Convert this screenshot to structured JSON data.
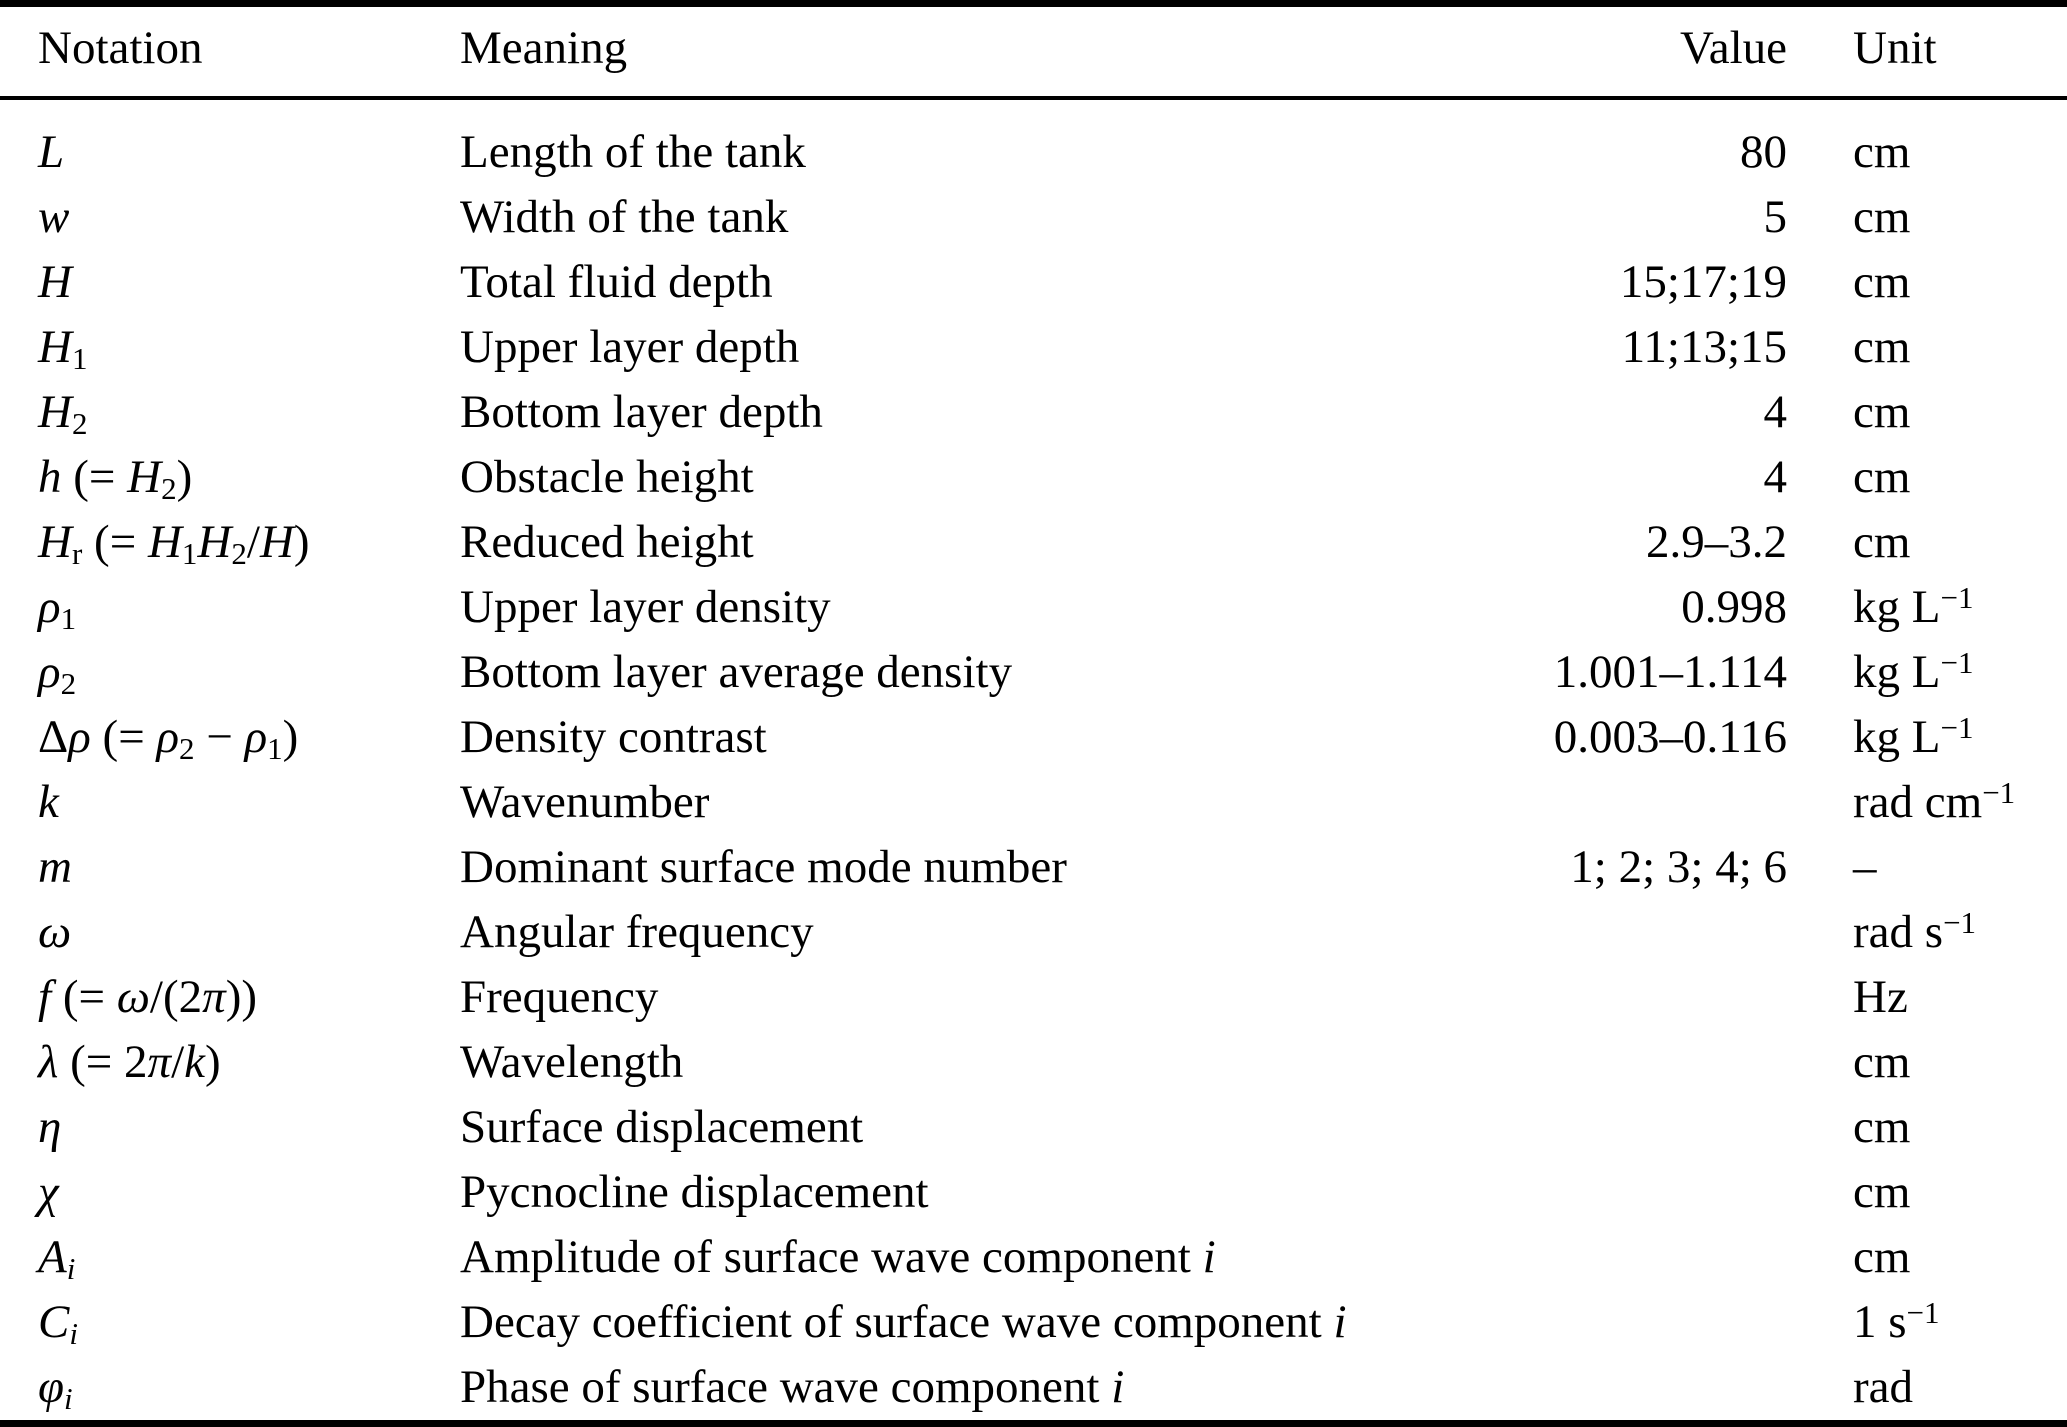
{
  "colors": {
    "background": "#ffffff",
    "text": "#000000",
    "rule": "#000000"
  },
  "table": {
    "columns": [
      {
        "label": "Notation"
      },
      {
        "label": "Meaning"
      },
      {
        "label": "Value"
      },
      {
        "label": "Unit"
      }
    ],
    "rows": [
      {
        "notation": [
          {
            "t": "L",
            "i": true
          }
        ],
        "meaning": [
          {
            "t": "Length of the tank"
          }
        ],
        "value": "80",
        "unit": [
          {
            "t": "cm"
          }
        ]
      },
      {
        "notation": [
          {
            "t": "w",
            "i": true
          }
        ],
        "meaning": [
          {
            "t": "Width of the tank"
          }
        ],
        "value": "5",
        "unit": [
          {
            "t": "cm"
          }
        ]
      },
      {
        "notation": [
          {
            "t": "H",
            "i": true
          }
        ],
        "meaning": [
          {
            "t": "Total fluid depth"
          }
        ],
        "value": "15;17;19",
        "unit": [
          {
            "t": "cm"
          }
        ]
      },
      {
        "notation": [
          {
            "t": "H",
            "i": true
          },
          {
            "t": "1",
            "sub": true
          }
        ],
        "meaning": [
          {
            "t": "Upper layer depth"
          }
        ],
        "value": "11;13;15",
        "unit": [
          {
            "t": "cm"
          }
        ]
      },
      {
        "notation": [
          {
            "t": "H",
            "i": true
          },
          {
            "t": "2",
            "sub": true
          }
        ],
        "meaning": [
          {
            "t": "Bottom layer depth"
          }
        ],
        "value": "4",
        "unit": [
          {
            "t": "cm"
          }
        ]
      },
      {
        "notation": [
          {
            "t": "h",
            "i": true
          },
          {
            "t": " (= "
          },
          {
            "t": "H",
            "i": true
          },
          {
            "t": "2",
            "sub": true
          },
          {
            "t": ")"
          }
        ],
        "meaning": [
          {
            "t": "Obstacle height"
          }
        ],
        "value": "4",
        "unit": [
          {
            "t": "cm"
          }
        ]
      },
      {
        "notation": [
          {
            "t": "H",
            "i": true
          },
          {
            "t": "r",
            "sub": true
          },
          {
            "t": " (= "
          },
          {
            "t": "H",
            "i": true
          },
          {
            "t": "1",
            "sub": true
          },
          {
            "t": "H",
            "i": true
          },
          {
            "t": "2",
            "sub": true
          },
          {
            "t": "/"
          },
          {
            "t": "H",
            "i": true
          },
          {
            "t": ")"
          }
        ],
        "meaning": [
          {
            "t": "Reduced height"
          }
        ],
        "value": "2.9–3.2",
        "unit": [
          {
            "t": "cm"
          }
        ]
      },
      {
        "notation": [
          {
            "t": "ρ",
            "i": true
          },
          {
            "t": "1",
            "sub": true
          }
        ],
        "meaning": [
          {
            "t": "Upper layer density"
          }
        ],
        "value": "0.998",
        "unit": [
          {
            "t": "kg L"
          },
          {
            "t": "−1",
            "sup": true
          }
        ]
      },
      {
        "notation": [
          {
            "t": "ρ",
            "i": true
          },
          {
            "t": "2",
            "sub": true
          }
        ],
        "meaning": [
          {
            "t": "Bottom layer average density"
          }
        ],
        "value": "1.001–1.114",
        "unit": [
          {
            "t": "kg L"
          },
          {
            "t": "−1",
            "sup": true
          }
        ]
      },
      {
        "notation": [
          {
            "t": "Δ"
          },
          {
            "t": "ρ",
            "i": true
          },
          {
            "t": " (= "
          },
          {
            "t": "ρ",
            "i": true
          },
          {
            "t": "2",
            "sub": true
          },
          {
            "t": " − "
          },
          {
            "t": "ρ",
            "i": true
          },
          {
            "t": "1",
            "sub": true
          },
          {
            "t": ")"
          }
        ],
        "meaning": [
          {
            "t": "Density contrast"
          }
        ],
        "value": "0.003–0.116",
        "unit": [
          {
            "t": "kg L"
          },
          {
            "t": "−1",
            "sup": true
          }
        ]
      },
      {
        "notation": [
          {
            "t": "k",
            "i": true
          }
        ],
        "meaning": [
          {
            "t": "Wavenumber"
          }
        ],
        "value": "",
        "unit": [
          {
            "t": "rad cm"
          },
          {
            "t": "−1",
            "sup": true
          }
        ]
      },
      {
        "notation": [
          {
            "t": "m",
            "i": true
          }
        ],
        "meaning": [
          {
            "t": "Dominant surface mode number"
          }
        ],
        "value": "1; 2; 3; 4; 6",
        "unit": [
          {
            "t": "–"
          }
        ]
      },
      {
        "notation": [
          {
            "t": "ω",
            "i": true
          }
        ],
        "meaning": [
          {
            "t": "Angular frequency"
          }
        ],
        "value": "",
        "unit": [
          {
            "t": "rad s"
          },
          {
            "t": "−1",
            "sup": true
          }
        ]
      },
      {
        "notation": [
          {
            "t": "f",
            "i": true
          },
          {
            "t": " (= "
          },
          {
            "t": "ω",
            "i": true
          },
          {
            "t": "/(2"
          },
          {
            "t": "π",
            "i": true
          },
          {
            "t": "))"
          }
        ],
        "meaning": [
          {
            "t": "Frequency"
          }
        ],
        "value": "",
        "unit": [
          {
            "t": "Hz"
          }
        ]
      },
      {
        "notation": [
          {
            "t": "λ",
            "i": true
          },
          {
            "t": " (= 2"
          },
          {
            "t": "π",
            "i": true
          },
          {
            "t": "/"
          },
          {
            "t": "k",
            "i": true
          },
          {
            "t": ")"
          }
        ],
        "meaning": [
          {
            "t": "Wavelength"
          }
        ],
        "value": "",
        "unit": [
          {
            "t": "cm"
          }
        ]
      },
      {
        "notation": [
          {
            "t": "η",
            "i": true
          }
        ],
        "meaning": [
          {
            "t": "Surface displacement"
          }
        ],
        "value": "",
        "unit": [
          {
            "t": "cm"
          }
        ]
      },
      {
        "notation": [
          {
            "t": "χ",
            "i": true
          }
        ],
        "meaning": [
          {
            "t": "Pycnocline displacement"
          }
        ],
        "value": "",
        "unit": [
          {
            "t": "cm"
          }
        ]
      },
      {
        "notation": [
          {
            "t": "A",
            "i": true
          },
          {
            "t": "i",
            "i": true,
            "sub": true
          }
        ],
        "meaning": [
          {
            "t": "Amplitude of surface wave component "
          },
          {
            "t": "i",
            "i": true
          }
        ],
        "value": "",
        "unit": [
          {
            "t": "cm"
          }
        ]
      },
      {
        "notation": [
          {
            "t": "C",
            "i": true
          },
          {
            "t": "i",
            "i": true,
            "sub": true
          }
        ],
        "meaning": [
          {
            "t": "Decay coefficient of surface wave component "
          },
          {
            "t": "i",
            "i": true
          }
        ],
        "value": "",
        "unit": [
          {
            "t": "1 s"
          },
          {
            "t": "−1",
            "sup": true
          }
        ]
      },
      {
        "notation": [
          {
            "t": "φ",
            "i": true
          },
          {
            "t": "i",
            "i": true,
            "sub": true
          }
        ],
        "meaning": [
          {
            "t": "Phase of surface wave component "
          },
          {
            "t": "i",
            "i": true
          }
        ],
        "value": "",
        "unit": [
          {
            "t": "rad"
          }
        ]
      }
    ]
  }
}
